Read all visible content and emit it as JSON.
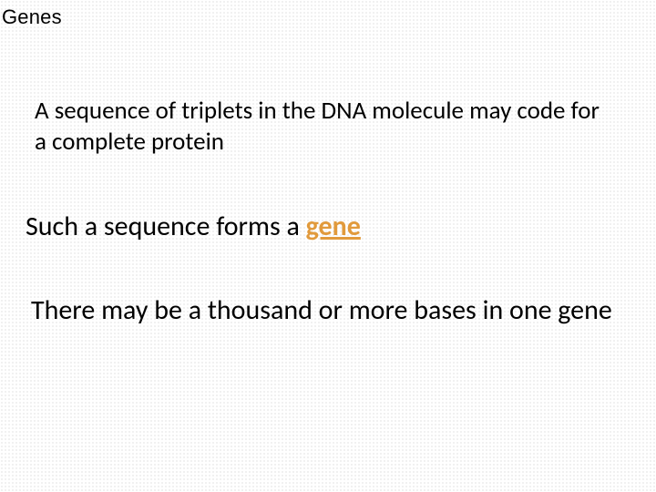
{
  "slide": {
    "title": "Genes",
    "paragraph1": "A sequence of triplets in the DNA molecule may code for a complete protein",
    "paragraph2_prefix": "Such a sequence forms a ",
    "paragraph2_highlight": "gene",
    "paragraph3": "There may be a thousand or more bases in one gene"
  },
  "style": {
    "background_color": "#ffffff",
    "dot_color": "#c8c8c8",
    "text_color": "#000000",
    "highlight_color": "#e19a3c",
    "title_fontsize": 22,
    "body_fontsize_small": 27,
    "body_fontsize_large": 30,
    "font_family": "Calibri"
  }
}
